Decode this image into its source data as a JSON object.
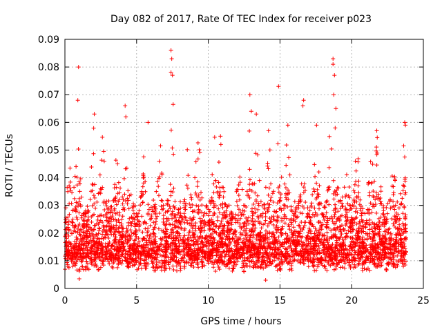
{
  "chart_data": {
    "type": "scatter",
    "title": "Day 082 of 2017, Rate Of TEC Index for receiver p023",
    "xlabel": "GPS time / hours",
    "ylabel": "ROTI / TECUs",
    "xlim": [
      0,
      25
    ],
    "ylim": [
      0,
      0.09
    ],
    "xticks": [
      0,
      5,
      10,
      15,
      20,
      25
    ],
    "xtick_labels": [
      "0",
      "5",
      "10",
      "15",
      "20",
      "25"
    ],
    "yticks": [
      0,
      0.01,
      0.02,
      0.03,
      0.04,
      0.05,
      0.06,
      0.07,
      0.08,
      0.09
    ],
    "ytick_labels": [
      "0",
      "0.01",
      "0.02",
      "0.03",
      "0.04",
      "0.05",
      "0.06",
      "0.07",
      "0.08",
      "0.09"
    ],
    "grid": true,
    "marker": "+",
    "color": "#ff0000",
    "notable_points": [
      {
        "x": 0.95,
        "y": 0.08
      },
      {
        "x": 0.9,
        "y": 0.068
      },
      {
        "x": 2.05,
        "y": 0.063
      },
      {
        "x": 4.2,
        "y": 0.066
      },
      {
        "x": 4.25,
        "y": 0.062
      },
      {
        "x": 5.8,
        "y": 0.06
      },
      {
        "x": 7.4,
        "y": 0.086
      },
      {
        "x": 7.45,
        "y": 0.083
      },
      {
        "x": 7.4,
        "y": 0.078
      },
      {
        "x": 7.5,
        "y": 0.077
      },
      {
        "x": 7.55,
        "y": 0.0665
      },
      {
        "x": 10.85,
        "y": 0.055
      },
      {
        "x": 12.9,
        "y": 0.07
      },
      {
        "x": 13.0,
        "y": 0.064
      },
      {
        "x": 13.35,
        "y": 0.063
      },
      {
        "x": 14.2,
        "y": 0.057
      },
      {
        "x": 14.9,
        "y": 0.073
      },
      {
        "x": 15.55,
        "y": 0.059
      },
      {
        "x": 16.65,
        "y": 0.068
      },
      {
        "x": 16.6,
        "y": 0.066
      },
      {
        "x": 17.55,
        "y": 0.059
      },
      {
        "x": 18.7,
        "y": 0.083
      },
      {
        "x": 18.7,
        "y": 0.081
      },
      {
        "x": 18.8,
        "y": 0.077
      },
      {
        "x": 18.75,
        "y": 0.07
      },
      {
        "x": 18.9,
        "y": 0.065
      },
      {
        "x": 18.85,
        "y": 0.058
      },
      {
        "x": 21.75,
        "y": 0.057
      },
      {
        "x": 23.7,
        "y": 0.06
      },
      {
        "x": 23.75,
        "y": 0.059
      },
      {
        "x": 23.7,
        "y": 0.0475
      },
      {
        "x": 14.0,
        "y": 0.003
      },
      {
        "x": 1.0,
        "y": 0.0035
      }
    ],
    "density_profile": {
      "note": "dense scatter between 0.003 and ~0.04 across the whole day, 0.0 to 23.8 hours",
      "x_range": [
        0.0,
        23.8
      ],
      "base_min": 0.003,
      "base_typical_max": 0.03,
      "spike_centers": [
        0.4,
        0.9,
        2.0,
        2.6,
        3.6,
        4.3,
        5.5,
        6.6,
        7.45,
        8.6,
        9.3,
        10.5,
        10.9,
        12.2,
        12.9,
        13.4,
        14.3,
        14.9,
        15.5,
        16.6,
        17.5,
        18.5,
        18.8,
        19.6,
        20.4,
        21.4,
        21.8,
        22.8,
        23.7
      ]
    }
  }
}
